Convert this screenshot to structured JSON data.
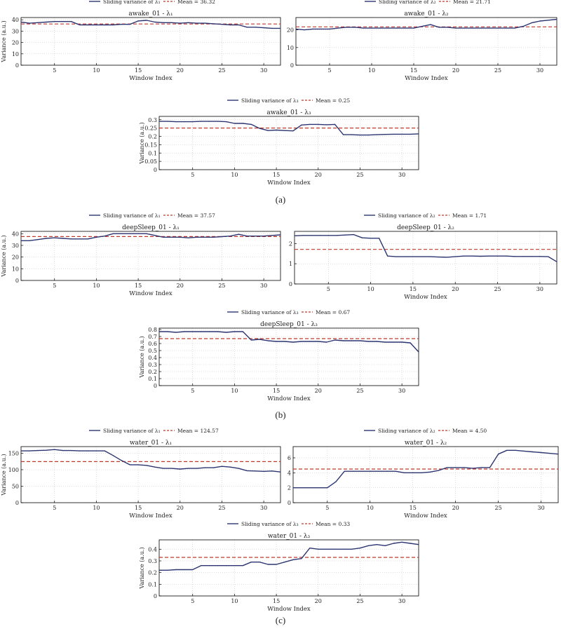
{
  "colors": {
    "series": "#2c3570",
    "mean": "#c0392b",
    "axis": "#000000",
    "grid": "#bfbfbf"
  },
  "panel_labels": [
    "(a)",
    "(b)",
    "(c)"
  ],
  "chart_data": [
    {
      "id": "a1",
      "type": "line",
      "title": "awake_01 - λ₁",
      "xlabel": "Window Index",
      "ylabel": "Variance (a.u.)",
      "legend": {
        "series_label": "Sliding variance of λ₁",
        "mean_label": "Mean = 36.32",
        "placement": "top-center"
      },
      "xlim": [
        1,
        32
      ],
      "ylim": [
        0,
        42
      ],
      "xticks": [
        5,
        10,
        15,
        20,
        25,
        30
      ],
      "yticks": [
        0,
        10,
        20,
        30,
        40
      ],
      "grid": true,
      "mean": 36.32,
      "x": [
        1,
        2,
        3,
        4,
        5,
        6,
        7,
        8,
        9,
        10,
        11,
        12,
        13,
        14,
        15,
        16,
        17,
        18,
        19,
        20,
        21,
        22,
        23,
        24,
        25,
        26,
        27,
        28,
        29,
        30,
        31,
        32
      ],
      "y": [
        38,
        37,
        37.5,
        38,
        38.5,
        38.5,
        38.5,
        35.5,
        35.5,
        35.5,
        35.5,
        35.5,
        36,
        36,
        39,
        39.5,
        38,
        37.5,
        37.5,
        37,
        37.5,
        37,
        37,
        36.5,
        36,
        35.5,
        35.5,
        33.5,
        33.5,
        33,
        32.5,
        32.5
      ]
    },
    {
      "id": "a2",
      "type": "line",
      "title": "awake_01 - λ₂",
      "xlabel": "Window Index",
      "ylabel": "",
      "legend": {
        "series_label": "Sliding variance of λ₂",
        "mean_label": "Mean = 21.71",
        "placement": "top-center"
      },
      "xlim": [
        1,
        32
      ],
      "ylim": [
        0,
        27
      ],
      "xticks": [
        5,
        10,
        15,
        20,
        25,
        30
      ],
      "yticks": [
        0,
        10,
        20
      ],
      "grid": true,
      "mean": 21.71,
      "x": [
        1,
        2,
        3,
        4,
        5,
        6,
        7,
        8,
        9,
        10,
        11,
        12,
        13,
        14,
        15,
        16,
        17,
        18,
        19,
        20,
        21,
        22,
        23,
        24,
        25,
        26,
        27,
        28,
        29,
        30,
        31,
        32
      ],
      "y": [
        20.5,
        20,
        20.5,
        20.5,
        20.5,
        21,
        21.5,
        21.5,
        21,
        21,
        21,
        21,
        21,
        21,
        21,
        22,
        23,
        21.5,
        21.5,
        21,
        21,
        21,
        21,
        21,
        21,
        21,
        21,
        22,
        24,
        25,
        25.5,
        26
      ]
    },
    {
      "id": "a3",
      "type": "line",
      "title": "awake_01 - λ₃",
      "xlabel": "Window Index",
      "ylabel": "Variance (a.u.)",
      "legend": {
        "series_label": "Sliding variance of λ₃",
        "mean_label": "Mean = 0.25",
        "placement": "top-center"
      },
      "xlim": [
        1,
        32
      ],
      "ylim": [
        0,
        0.32
      ],
      "xticks": [
        5,
        10,
        15,
        20,
        25,
        30
      ],
      "yticks": [
        0,
        0.05,
        0.1,
        0.15,
        0.2,
        0.25,
        0.3
      ],
      "grid": true,
      "mean": 0.25,
      "x": [
        1,
        2,
        3,
        4,
        5,
        6,
        7,
        8,
        9,
        10,
        11,
        12,
        13,
        14,
        15,
        16,
        17,
        18,
        19,
        20,
        21,
        22,
        23,
        24,
        25,
        26,
        27,
        28,
        29,
        30,
        31,
        32
      ],
      "y": [
        0.29,
        0.29,
        0.288,
        0.288,
        0.288,
        0.29,
        0.29,
        0.29,
        0.288,
        0.278,
        0.278,
        0.272,
        0.248,
        0.235,
        0.238,
        0.235,
        0.233,
        0.268,
        0.272,
        0.272,
        0.27,
        0.272,
        0.21,
        0.21,
        0.208,
        0.208,
        0.21,
        0.212,
        0.213,
        0.213,
        0.213,
        0.215
      ]
    },
    {
      "id": "b1",
      "type": "line",
      "title": "deepSleep_01 - λ₁",
      "xlabel": "Window Index",
      "ylabel": "Variance (a.u.)",
      "legend": {
        "series_label": "Sliding variance of λ₁",
        "mean_label": "Mean = 37.57",
        "placement": "top-center"
      },
      "xlim": [
        1,
        32
      ],
      "ylim": [
        0,
        42
      ],
      "xticks": [
        5,
        10,
        15,
        20,
        25,
        30
      ],
      "yticks": [
        0,
        10,
        20,
        30,
        40
      ],
      "grid": true,
      "mean": 37.57,
      "x": [
        1,
        2,
        3,
        4,
        5,
        6,
        7,
        8,
        9,
        10,
        11,
        12,
        13,
        14,
        15,
        16,
        17,
        18,
        19,
        20,
        21,
        22,
        23,
        24,
        25,
        26,
        27,
        28,
        29,
        30,
        31,
        32
      ],
      "y": [
        34,
        34,
        35,
        36,
        36.5,
        36,
        35.5,
        35.5,
        35.5,
        37,
        38,
        40,
        40,
        40,
        40,
        40,
        38.5,
        37,
        37,
        37,
        36.5,
        37,
        37,
        37,
        37.5,
        38,
        39.5,
        38,
        38,
        38,
        38.5,
        39
      ]
    },
    {
      "id": "b2",
      "type": "line",
      "title": "deepSleep_01 - λ₂",
      "xlabel": "Window Index",
      "ylabel": "",
      "legend": {
        "series_label": "Sliding variance of λ₂",
        "mean_label": "Mean = 1.71",
        "placement": "top-center"
      },
      "xlim": [
        1,
        32
      ],
      "ylim": [
        0,
        2.6
      ],
      "xticks": [
        5,
        10,
        15,
        20,
        25,
        30
      ],
      "yticks": [
        0,
        1,
        2
      ],
      "grid": true,
      "mean": 1.71,
      "x": [
        1,
        2,
        3,
        4,
        5,
        6,
        7,
        8,
        9,
        10,
        11,
        12,
        13,
        14,
        15,
        16,
        17,
        18,
        19,
        20,
        21,
        22,
        23,
        24,
        25,
        26,
        27,
        28,
        29,
        30,
        31,
        32
      ],
      "y": [
        2.38,
        2.4,
        2.4,
        2.4,
        2.4,
        2.4,
        2.42,
        2.44,
        2.28,
        2.26,
        2.26,
        1.38,
        1.35,
        1.35,
        1.35,
        1.35,
        1.35,
        1.33,
        1.32,
        1.35,
        1.38,
        1.38,
        1.37,
        1.38,
        1.38,
        1.38,
        1.36,
        1.36,
        1.36,
        1.36,
        1.35,
        1.1
      ]
    },
    {
      "id": "b3",
      "type": "line",
      "title": "deepSleep_01 - λ₃",
      "xlabel": "Window Index",
      "ylabel": "Variance (a.u.)",
      "legend": {
        "series_label": "Sliding variance of λ₃",
        "mean_label": "Mean = 0.67",
        "placement": "top-center"
      },
      "xlim": [
        1,
        32
      ],
      "ylim": [
        0,
        0.82
      ],
      "xticks": [
        5,
        10,
        15,
        20,
        25,
        30
      ],
      "yticks": [
        0,
        0.1,
        0.2,
        0.3,
        0.4,
        0.5,
        0.6,
        0.7,
        0.8
      ],
      "grid": true,
      "mean": 0.67,
      "x": [
        1,
        2,
        3,
        4,
        5,
        6,
        7,
        8,
        9,
        10,
        11,
        12,
        13,
        14,
        15,
        16,
        17,
        18,
        19,
        20,
        21,
        22,
        23,
        24,
        25,
        26,
        27,
        28,
        29,
        30,
        31,
        32
      ],
      "y": [
        0.77,
        0.77,
        0.76,
        0.77,
        0.77,
        0.77,
        0.77,
        0.77,
        0.76,
        0.77,
        0.77,
        0.65,
        0.66,
        0.64,
        0.63,
        0.63,
        0.62,
        0.63,
        0.63,
        0.63,
        0.62,
        0.65,
        0.64,
        0.64,
        0.64,
        0.63,
        0.63,
        0.62,
        0.62,
        0.62,
        0.61,
        0.48
      ]
    },
    {
      "id": "c1",
      "type": "line",
      "title": "water_01 - λ₁",
      "xlabel": "Window Index",
      "ylabel": "Variance (a.u.)",
      "legend": {
        "series_label": "Sliding variance of λ₁",
        "mean_label": "Mean = 124.57",
        "placement": "top-center"
      },
      "xlim": [
        1,
        32
      ],
      "ylim": [
        0,
        170
      ],
      "xticks": [
        5,
        10,
        15,
        20,
        25,
        30
      ],
      "yticks": [
        0,
        50,
        100,
        150
      ],
      "grid": true,
      "mean": 124.57,
      "x": [
        1,
        2,
        3,
        4,
        5,
        6,
        7,
        8,
        9,
        10,
        11,
        12,
        13,
        14,
        15,
        16,
        17,
        18,
        19,
        20,
        21,
        22,
        23,
        24,
        25,
        26,
        27,
        28,
        29,
        30,
        31,
        32
      ],
      "y": [
        157,
        157,
        158,
        159,
        161,
        158,
        158,
        157,
        157,
        157,
        157,
        143,
        128,
        115,
        115,
        113,
        108,
        104,
        104,
        102,
        104,
        104,
        106,
        106,
        110,
        108,
        104,
        97,
        96,
        95,
        96,
        93
      ]
    },
    {
      "id": "c2",
      "type": "line",
      "title": "water_01 - λ₂",
      "xlabel": "Window Index",
      "ylabel": "",
      "legend": {
        "series_label": "Sliding variance of λ₂",
        "mean_label": "Mean = 4.50",
        "placement": "top-center"
      },
      "xlim": [
        1,
        32
      ],
      "ylim": [
        0,
        7.5
      ],
      "xticks": [
        5,
        10,
        15,
        20,
        25,
        30
      ],
      "yticks": [
        0,
        2,
        4,
        6
      ],
      "grid": true,
      "mean": 4.5,
      "x": [
        1,
        2,
        3,
        4,
        5,
        6,
        7,
        8,
        9,
        10,
        11,
        12,
        13,
        14,
        15,
        16,
        17,
        18,
        19,
        20,
        21,
        22,
        23,
        24,
        25,
        26,
        27,
        28,
        29,
        30,
        31,
        32
      ],
      "y": [
        2,
        2,
        2,
        2,
        2,
        2.8,
        4.2,
        4.2,
        4.2,
        4.2,
        4.2,
        4.2,
        4.2,
        4.0,
        4.0,
        4.0,
        4.1,
        4.3,
        4.7,
        4.7,
        4.7,
        4.6,
        4.7,
        4.7,
        6.5,
        7.0,
        7.0,
        6.9,
        6.8,
        6.7,
        6.6,
        6.5
      ]
    },
    {
      "id": "c3",
      "type": "line",
      "title": "water_01 - λ₃",
      "xlabel": "Window Index",
      "ylabel": "Variance (a.u.)",
      "legend": {
        "series_label": "Sliding variance of λ₃",
        "mean_label": "Mean = 0.33",
        "placement": "top-center"
      },
      "xlim": [
        1,
        32
      ],
      "ylim": [
        0,
        0.48
      ],
      "xticks": [
        5,
        10,
        15,
        20,
        25,
        30
      ],
      "yticks": [
        0,
        0.1,
        0.2,
        0.3,
        0.4
      ],
      "grid": true,
      "mean": 0.33,
      "x": [
        1,
        2,
        3,
        4,
        5,
        6,
        7,
        8,
        9,
        10,
        11,
        12,
        13,
        14,
        15,
        16,
        17,
        18,
        19,
        20,
        21,
        22,
        23,
        24,
        25,
        26,
        27,
        28,
        29,
        30,
        31,
        32
      ],
      "y": [
        0.22,
        0.22,
        0.225,
        0.225,
        0.225,
        0.26,
        0.26,
        0.26,
        0.26,
        0.26,
        0.26,
        0.29,
        0.29,
        0.27,
        0.27,
        0.29,
        0.31,
        0.32,
        0.41,
        0.4,
        0.4,
        0.4,
        0.4,
        0.4,
        0.41,
        0.43,
        0.44,
        0.43,
        0.45,
        0.46,
        0.45,
        0.44
      ]
    }
  ]
}
